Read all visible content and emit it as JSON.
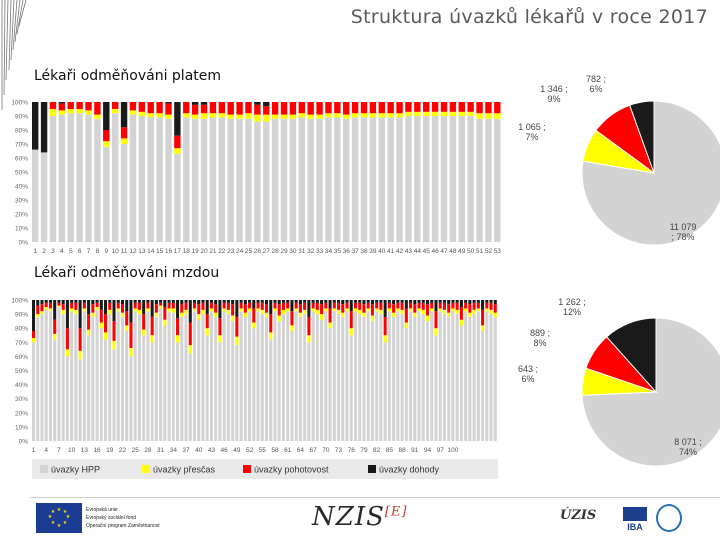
{
  "title": "Struktura úvazků lékařů v roce 2017",
  "sections": {
    "salary": "Lékaři odměňováni platem",
    "wage": "Lékaři odměňováni mzdou"
  },
  "legend": {
    "hpp": "úvazky HPP",
    "overtime": "úvazky přesčas",
    "oncall": "úvazky pohotovost",
    "agreement": "úvazky dohody"
  },
  "colors": {
    "hpp": "#d3d3d3",
    "overtime": "#ffff00",
    "oncall": "#ff0000",
    "agreement": "#1a1a1a"
  },
  "footer": {
    "eu_line1": "Evropská unie",
    "eu_line2": "Evropský sociální fond",
    "eu_line3": "Operační program Zaměstnanost",
    "nzis": "NZIS",
    "nzis_sup": "[E]",
    "uzis": "ÚZIS",
    "iba": "IBA"
  },
  "chart_data": [
    {
      "type": "bar",
      "title": "Lékaři odměňováni platem",
      "stacked": true,
      "percent": true,
      "ylim": [
        0,
        100
      ],
      "yticks": [
        "0%",
        "10%",
        "20%",
        "30%",
        "40%",
        "50%",
        "60%",
        "70%",
        "80%",
        "90%",
        "100%"
      ],
      "categories": [
        "1",
        "2",
        "3",
        "4",
        "5",
        "6",
        "7",
        "8",
        "9",
        "10",
        "11",
        "12",
        "13",
        "14",
        "15",
        "16",
        "17",
        "18",
        "19",
        "20",
        "21",
        "22",
        "23",
        "24",
        "25",
        "26",
        "27",
        "28",
        "29",
        "30",
        "31",
        "32",
        "33",
        "34",
        "35",
        "36",
        "37",
        "38",
        "39",
        "40",
        "41",
        "42",
        "43",
        "44",
        "45",
        "46",
        "47",
        "48",
        "49",
        "50",
        "51",
        "52",
        "53"
      ],
      "series": [
        {
          "name": "úvazky HPP",
          "values": [
            66,
            64,
            90,
            91,
            92,
            92,
            91,
            88,
            68,
            92,
            70,
            91,
            90,
            89,
            89,
            88,
            63,
            89,
            88,
            88,
            89,
            89,
            88,
            88,
            88,
            86,
            86,
            88,
            88,
            88,
            89,
            88,
            88,
            89,
            89,
            88,
            89,
            89,
            89,
            89,
            89,
            89,
            90,
            90,
            90,
            90,
            90,
            90,
            90,
            90,
            88,
            88,
            88
          ]
        },
        {
          "name": "úvazky přesčas",
          "values": [
            0,
            0,
            5,
            3,
            3,
            3,
            3,
            3,
            4,
            3,
            4,
            3,
            3,
            3,
            3,
            3,
            4,
            3,
            3,
            4,
            3,
            3,
            3,
            3,
            4,
            5,
            5,
            3,
            3,
            3,
            3,
            3,
            3,
            3,
            3,
            3,
            3,
            3,
            3,
            3,
            3,
            3,
            3,
            3,
            3,
            3,
            3,
            3,
            3,
            3,
            4,
            4,
            4
          ]
        },
        {
          "name": "úvazky pohotovost",
          "values": [
            0,
            0,
            5,
            5,
            5,
            5,
            6,
            9,
            8,
            5,
            8,
            6,
            7,
            8,
            8,
            8,
            9,
            8,
            7,
            6,
            8,
            8,
            9,
            9,
            8,
            7,
            6,
            9,
            9,
            9,
            8,
            9,
            9,
            8,
            8,
            9,
            8,
            8,
            8,
            8,
            8,
            8,
            7,
            7,
            7,
            7,
            7,
            7,
            7,
            7,
            8,
            8,
            8
          ]
        },
        {
          "name": "úvazky dohody",
          "values": [
            34,
            36,
            0,
            1,
            0,
            0,
            0,
            0,
            20,
            0,
            18,
            0,
            0,
            0,
            0,
            1,
            24,
            0,
            2,
            2,
            0,
            0,
            0,
            0,
            0,
            2,
            3,
            0,
            0,
            0,
            0,
            0,
            0,
            0,
            0,
            0,
            0,
            0,
            0,
            0,
            0,
            0,
            0,
            0,
            0,
            0,
            0,
            0,
            0,
            0,
            0,
            0,
            0
          ]
        }
      ]
    },
    {
      "type": "bar",
      "title": "Lékaři odměňováni mzdou",
      "stacked": true,
      "percent": true,
      "ylim": [
        0,
        100
      ],
      "yticks": [
        "0%",
        "10%",
        "20%",
        "30%",
        "40%",
        "50%",
        "60%",
        "70%",
        "80%",
        "90%",
        "100%"
      ],
      "categories": [
        "1",
        "2",
        "3",
        "4",
        "5",
        "6",
        "7",
        "8",
        "9",
        "10",
        "11",
        "12",
        "13",
        "14",
        "15",
        "16",
        "17",
        "18",
        "19",
        "20",
        "21",
        "22",
        "23",
        "24",
        "25",
        "26",
        "27",
        "28",
        "29",
        "30",
        "31",
        "32",
        "33",
        "34",
        "35",
        "36",
        "37",
        "38",
        "39",
        "40",
        "41",
        "42",
        "43",
        "44",
        "45",
        "46",
        "47",
        "48",
        "49",
        "50",
        "51",
        "52",
        "53",
        "54",
        "55",
        "56",
        "57",
        "58",
        "59",
        "60",
        "61",
        "62",
        "63",
        "64",
        "65",
        "66",
        "67",
        "68",
        "69",
        "70",
        "71",
        "72",
        "73",
        "74",
        "75",
        "76",
        "77",
        "78",
        "79",
        "80",
        "81",
        "82",
        "83",
        "84",
        "85",
        "86",
        "87",
        "88",
        "89",
        "90",
        "91",
        "92",
        "93",
        "94",
        "95",
        "96",
        "97",
        "98",
        "99",
        "100",
        "101",
        "102",
        "103",
        "104",
        "105",
        "106",
        "107",
        "108",
        "109",
        "110"
      ],
      "xtick_labels": [
        "1",
        "4",
        "7",
        "10",
        "13",
        "16",
        "19",
        "22",
        "25",
        "28",
        "31",
        "34",
        "37",
        "40",
        "43",
        "46",
        "49",
        "52",
        "55",
        "58",
        "61",
        "64",
        "67",
        "70",
        "73",
        "76",
        "79",
        "82",
        "85",
        "88",
        "91",
        "94",
        "97",
        "100"
      ],
      "series": [
        {
          "name": "úvazky HPP",
          "values": [
            70,
            88,
            90,
            93,
            92,
            72,
            95,
            90,
            60,
            92,
            90,
            58,
            92,
            75,
            88,
            93,
            80,
            72,
            90,
            65,
            92,
            88,
            78,
            60,
            92,
            90,
            75,
            92,
            70,
            88,
            94,
            82,
            92,
            91,
            70,
            88,
            90,
            62,
            92,
            86,
            90,
            75,
            92,
            88,
            70,
            92,
            90,
            85,
            68,
            92,
            88,
            92,
            80,
            92,
            90,
            88,
            72,
            92,
            85,
            90,
            92,
            78,
            92,
            88,
            90,
            70,
            92,
            90,
            86,
            92,
            80,
            92,
            90,
            88,
            92,
            75,
            92,
            90,
            88,
            92,
            85,
            92,
            90,
            70,
            92,
            88,
            92,
            90,
            80,
            92,
            88,
            92,
            90,
            85,
            92,
            75,
            92,
            90,
            88,
            92,
            90,
            82,
            92,
            88,
            90,
            92,
            78,
            92,
            90,
            88
          ]
        },
        {
          "name": "úvazky přesčas",
          "values": [
            3,
            2,
            2,
            2,
            2,
            4,
            1,
            3,
            5,
            2,
            3,
            6,
            2,
            4,
            3,
            2,
            4,
            5,
            3,
            6,
            2,
            3,
            4,
            6,
            2,
            3,
            4,
            2,
            5,
            3,
            2,
            4,
            2,
            3,
            5,
            3,
            3,
            6,
            2,
            4,
            3,
            5,
            2,
            3,
            5,
            2,
            3,
            4,
            6,
            2,
            3,
            2,
            4,
            2,
            3,
            3,
            5,
            2,
            4,
            3,
            2,
            4,
            2,
            3,
            3,
            5,
            2,
            3,
            4,
            2,
            4,
            2,
            3,
            3,
            2,
            5,
            2,
            3,
            3,
            2,
            4,
            2,
            3,
            5,
            2,
            3,
            2,
            3,
            4,
            2,
            3,
            2,
            3,
            4,
            2,
            5,
            2,
            3,
            3,
            2,
            3,
            4,
            2,
            3,
            3,
            2,
            4,
            2,
            3,
            3
          ]
        },
        {
          "name": "úvazky pohotovost",
          "values": [
            5,
            6,
            5,
            3,
            4,
            10,
            2,
            4,
            15,
            4,
            5,
            16,
            4,
            11,
            6,
            3,
            9,
            13,
            5,
            14,
            4,
            6,
            10,
            18,
            4,
            5,
            11,
            4,
            13,
            6,
            2,
            9,
            4,
            4,
            12,
            6,
            5,
            16,
            4,
            7,
            5,
            10,
            4,
            6,
            12,
            4,
            5,
            8,
            14,
            4,
            6,
            4,
            10,
            4,
            5,
            6,
            13,
            4,
            8,
            5,
            4,
            10,
            4,
            6,
            5,
            13,
            4,
            5,
            7,
            4,
            10,
            4,
            5,
            6,
            4,
            12,
            4,
            5,
            6,
            4,
            8,
            4,
            5,
            13,
            4,
            6,
            4,
            5,
            10,
            4,
            6,
            4,
            5,
            8,
            4,
            12,
            4,
            5,
            6,
            4,
            5,
            9,
            4,
            6,
            5,
            4,
            11,
            4,
            5,
            6
          ]
        },
        {
          "name": "úvazky dohody",
          "values": [
            22,
            4,
            3,
            2,
            2,
            14,
            2,
            3,
            20,
            2,
            2,
            20,
            2,
            10,
            3,
            2,
            7,
            10,
            2,
            15,
            2,
            3,
            8,
            16,
            2,
            2,
            10,
            2,
            12,
            3,
            2,
            5,
            2,
            2,
            13,
            3,
            2,
            16,
            2,
            3,
            2,
            10,
            2,
            3,
            13,
            2,
            2,
            3,
            12,
            2,
            3,
            2,
            6,
            2,
            2,
            3,
            10,
            2,
            3,
            2,
            2,
            8,
            2,
            3,
            2,
            12,
            2,
            2,
            3,
            2,
            6,
            2,
            2,
            3,
            2,
            8,
            2,
            2,
            3,
            2,
            3,
            2,
            2,
            12,
            2,
            3,
            2,
            2,
            6,
            2,
            3,
            2,
            2,
            3,
            2,
            8,
            2,
            2,
            3,
            2,
            2,
            5,
            2,
            3,
            2,
            2,
            7,
            2,
            2,
            3
          ]
        }
      ]
    },
    {
      "type": "pie",
      "title": "Lékaři odměňováni platem",
      "slices": [
        {
          "name": "úvazky HPP",
          "value": 11079,
          "label1": "11 079",
          "label2": "; 78%"
        },
        {
          "name": "úvazky přesčas",
          "value": 1065,
          "label1": "1 065 ;",
          "label2": "7%"
        },
        {
          "name": "úvazky pohotovost",
          "value": 1346,
          "label1": "1 346 ;",
          "label2": "9%"
        },
        {
          "name": "úvazky dohody",
          "value": 782,
          "label1": "782 ;",
          "label2": "6%"
        }
      ]
    },
    {
      "type": "pie",
      "title": "Lékaři odměňováni mzdou",
      "slices": [
        {
          "name": "úvazky HPP",
          "value": 8071,
          "label1": "8 071 ;",
          "label2": "74%"
        },
        {
          "name": "úvazky přesčas",
          "value": 643,
          "label1": "643 ;",
          "label2": "6%"
        },
        {
          "name": "úvazky pohotovost",
          "value": 889,
          "label1": "889 ;",
          "label2": "8%"
        },
        {
          "name": "úvazky dohody",
          "value": 1262,
          "label1": "1 262 ;",
          "label2": "12%"
        }
      ]
    }
  ]
}
